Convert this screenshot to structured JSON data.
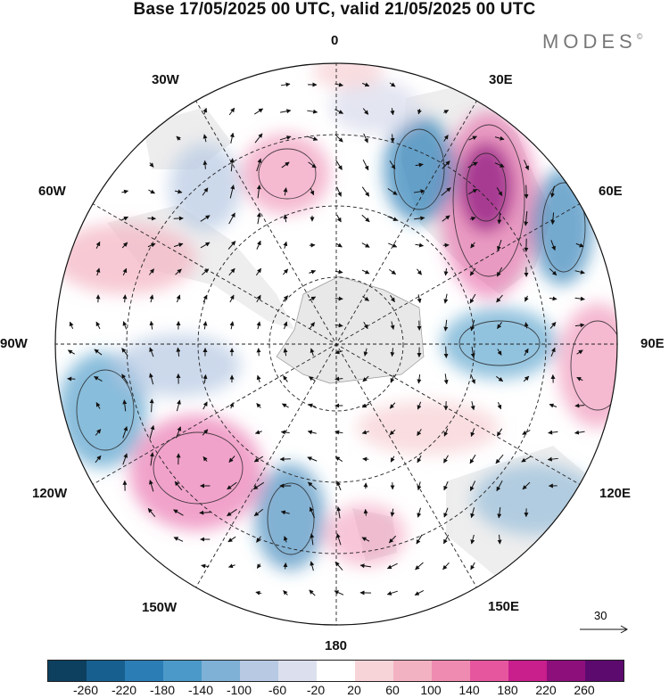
{
  "title": "Base 17/05/2025 00 UTC, valid 21/05/2025 00 UTC",
  "brand": "MODES",
  "brand_mark": "©",
  "longitude_labels": {
    "top": "0",
    "e30": "30E",
    "e60": "60E",
    "e90": "90E",
    "e120": "120E",
    "e150": "150E",
    "bottom": "180",
    "w150": "150W",
    "w120": "120W",
    "w90": "90W",
    "w60": "60W",
    "w30": "30W"
  },
  "reference_vector": "30",
  "colorbar": {
    "ticks": [
      "-260",
      "-220",
      "-180",
      "-140",
      "-100",
      "-60",
      "-20",
      "20",
      "60",
      "100",
      "140",
      "180",
      "220",
      "260"
    ],
    "colors": [
      "#0d3f5e",
      "#175f8e",
      "#2b7db6",
      "#4a99c8",
      "#7fb0d6",
      "#b7c9e3",
      "#dcdfee",
      "#ffffff",
      "#f7d4d8",
      "#f3b2c2",
      "#ef8bb0",
      "#e5569f",
      "#c81f8c",
      "#8c0f7c",
      "#5c0a6e"
    ]
  },
  "layers": {
    "icon": "polar-stereographic-map",
    "features": [
      "antarctica",
      "southern-continents",
      "anomaly-shading",
      "wind-vectors",
      "graticule"
    ]
  }
}
